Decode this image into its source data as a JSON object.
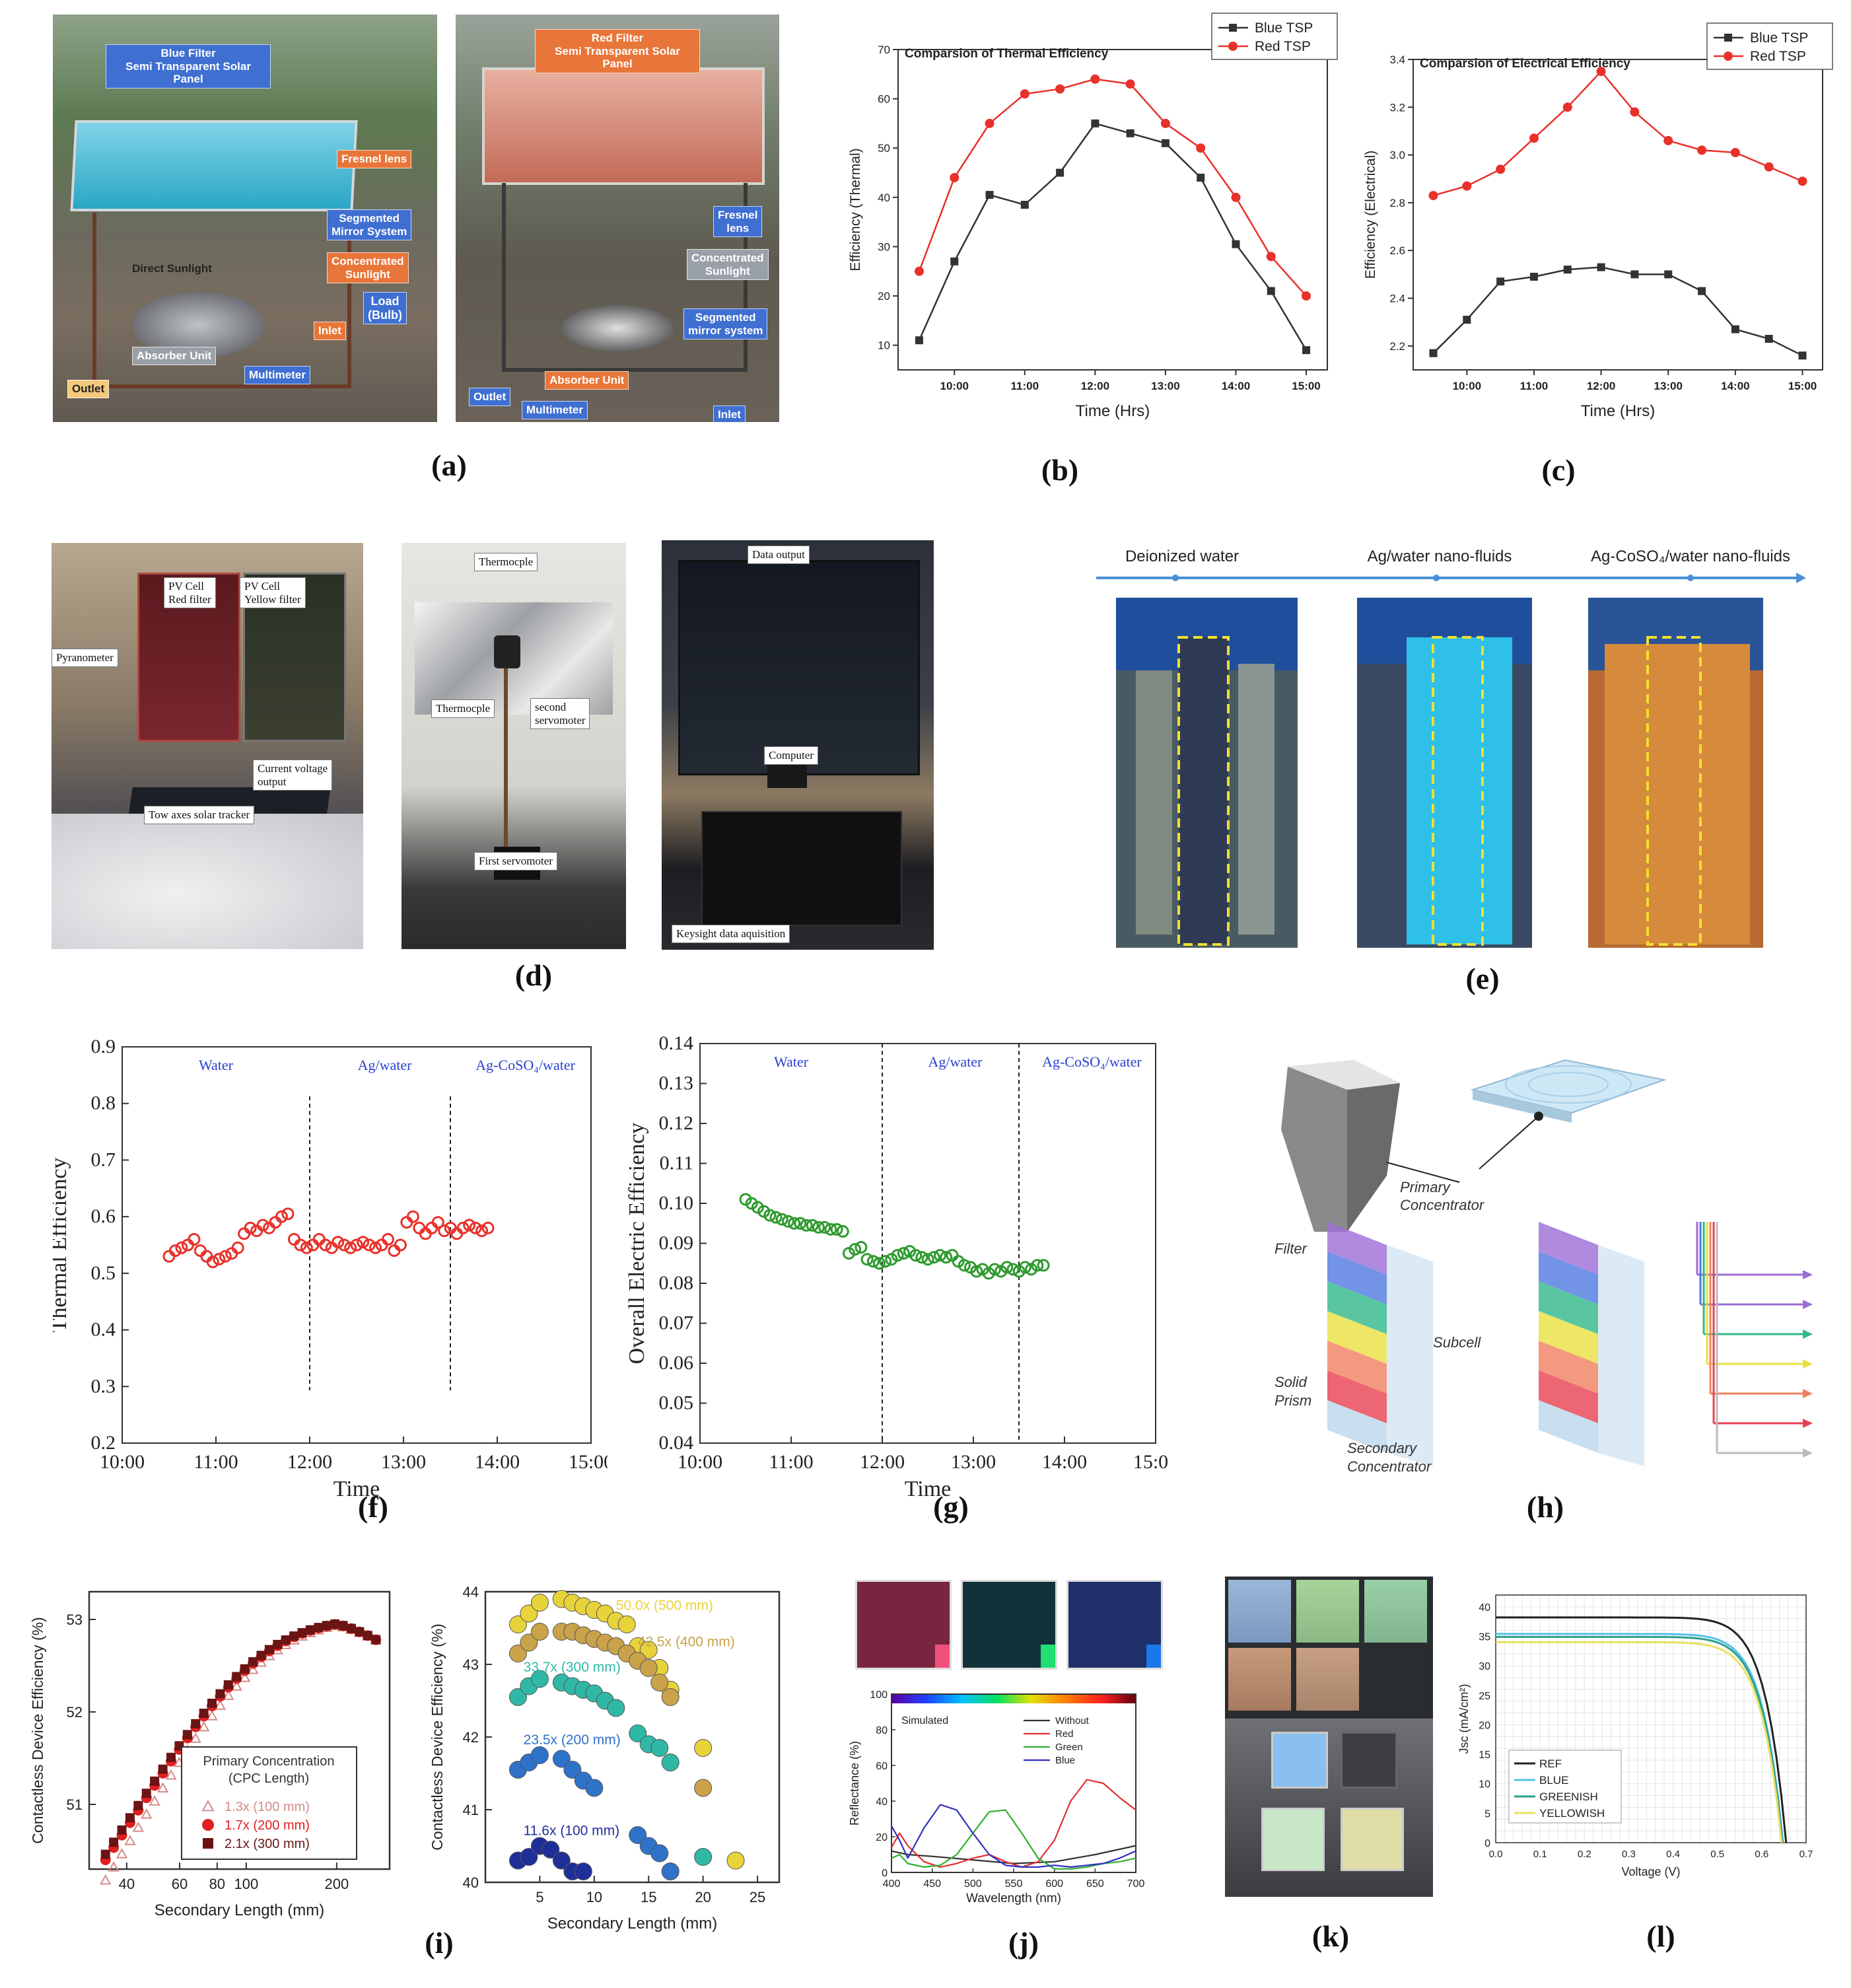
{
  "panel_labels": [
    "(a)",
    "(b)",
    "(c)",
    "(d)",
    "(e)",
    "(f)",
    "(g)",
    "(h)",
    "(i)",
    "(j)",
    "(k)",
    "(l)"
  ],
  "a": {
    "left": {
      "blue_filter": "Blue Filter\nSemi Transparent  Solar Panel",
      "fresnel": "Fresnel lens",
      "segmented": "Segmented\nMirror System",
      "concentrated": "Concentrated\nSunlight",
      "direct": "Direct Sunlight",
      "load": "Load\n(Bulb)",
      "inlet": "Inlet",
      "absorber": "Absorber Unit",
      "multimeter": "Multimeter",
      "outlet": "Outlet"
    },
    "right": {
      "red_filter": "Red Filter\nSemi Transparent Solar Panel",
      "fresnel": "Fresnel\nlens",
      "concentrated": "Concentrated\nSunlight",
      "segmented": "Segmented\nmirror system",
      "absorber": "Absorber Unit",
      "outlet": "Outlet",
      "multimeter": "Multimeter",
      "inlet": "Inlet"
    }
  },
  "d": {
    "pyranometer": "Pyranometer",
    "pv_red": "PV Cell\nRed filter",
    "pv_yellow": "PV Cell\nYellow filter",
    "current_voltage": "Current voltage\noutput",
    "tracker": "Tow axes solar tracker",
    "thermocple_top": "Thermocple",
    "thermocple_mid": "Thermocple",
    "second_servo": "second\nservomoter",
    "first_servo": "First servomoter",
    "data_output": "Data output",
    "computer": "Computer",
    "keysight": "Keysight data aquisition"
  },
  "e": {
    "labels": [
      "Deionized water",
      "Ag/water nano-fluids",
      "Ag-CoSO₄/water nano-fluids"
    ]
  },
  "h": {
    "primary": "Primary\nConcentrator",
    "filter": "Filter",
    "subcell": "Subcell",
    "solid_prism": "Solid\nPrism",
    "secondary": "Secondary\nConcentrator"
  },
  "k": {},
  "chart_data": [
    {
      "id": "b",
      "type": "line",
      "title": "Comparsion of Thermal Efficiency",
      "xlabel": "Time (Hrs)",
      "ylabel": "Efficiency (Thermal)",
      "x": [
        9.5,
        10,
        10.5,
        11,
        11.5,
        12,
        12.5,
        13,
        13.5,
        14,
        14.5,
        15
      ],
      "xticks": [
        "10:00",
        "11:00",
        "12:00",
        "13:00",
        "14:00",
        "15:00"
      ],
      "xtick_values": [
        10,
        11,
        12,
        13,
        14,
        15
      ],
      "xlim": [
        9.2,
        15.3
      ],
      "ylim": [
        5,
        70
      ],
      "yticks": [
        10,
        20,
        30,
        40,
        50,
        60,
        70
      ],
      "series": [
        {
          "name": "Blue TSP",
          "color": "#333333",
          "marker": "square",
          "values": [
            11,
            27,
            40.5,
            38.5,
            45,
            55,
            53,
            51,
            44,
            30.5,
            21,
            9
          ]
        },
        {
          "name": "Red TSP",
          "color": "#e8312a",
          "marker": "circle",
          "values": [
            25,
            44,
            55,
            61,
            62,
            64,
            63,
            55,
            50,
            40,
            28,
            20
          ]
        }
      ],
      "legend": "top-right"
    },
    {
      "id": "c",
      "type": "line",
      "title": "Comparsion of Electrical Efficiency",
      "xlabel": "Time (Hrs)",
      "ylabel": "Efficiency (Electrical)",
      "x": [
        9.5,
        10,
        10.5,
        11,
        11.5,
        12,
        12.5,
        13,
        13.5,
        14,
        14.5,
        15
      ],
      "xticks": [
        "10:00",
        "11:00",
        "12:00",
        "13:00",
        "14:00",
        "15:00"
      ],
      "xtick_values": [
        10,
        11,
        12,
        13,
        14,
        15
      ],
      "xlim": [
        9.2,
        15.3
      ],
      "ylim": [
        2.1,
        3.4
      ],
      "yticks": [
        2.2,
        2.4,
        2.6,
        2.8,
        3.0,
        3.2,
        3.4
      ],
      "ytick_labels": [
        "2.2",
        "2.4",
        "2.6",
        "2.8",
        "3.0",
        "3.2",
        "3.4"
      ],
      "series": [
        {
          "name": "Blue TSP",
          "color": "#333333",
          "marker": "square",
          "values": [
            2.17,
            2.31,
            2.47,
            2.49,
            2.52,
            2.53,
            2.5,
            2.5,
            2.43,
            2.27,
            2.23,
            2.16
          ]
        },
        {
          "name": "Red TSP",
          "color": "#e8312a",
          "marker": "circle",
          "values": [
            2.83,
            2.87,
            2.94,
            3.07,
            3.2,
            3.35,
            3.18,
            3.06,
            3.02,
            3.01,
            2.95,
            2.89
          ]
        }
      ],
      "legend": "top-right"
    },
    {
      "id": "f",
      "type": "scatter",
      "xlabel": "Time",
      "ylabel": "Thermal Efficiency",
      "xlim": [
        10,
        15
      ],
      "ylim": [
        0.2,
        0.9
      ],
      "xticks": [
        "10:00",
        "11:00",
        "12:00",
        "13:00",
        "14:00",
        "15:00"
      ],
      "yticks": [
        "0.2",
        "0.3",
        "0.4",
        "0.5",
        "0.6",
        "0.7",
        "0.8",
        "0.9"
      ],
      "regions": [
        "Water",
        "Ag/water",
        "Ag-CoSO₄/water"
      ],
      "dividers": [
        12,
        13.5
      ],
      "color": "#e8312a",
      "x_start": 10.5,
      "x_step": 0.0667,
      "values": [
        0.53,
        0.54,
        0.545,
        0.55,
        0.56,
        0.54,
        0.53,
        0.52,
        0.525,
        0.53,
        0.535,
        0.545,
        0.57,
        0.58,
        0.575,
        0.585,
        0.58,
        0.59,
        0.6,
        0.605,
        0.56,
        0.55,
        0.545,
        0.55,
        0.56,
        0.55,
        0.545,
        0.555,
        0.55,
        0.545,
        0.55,
        0.555,
        0.55,
        0.545,
        0.55,
        0.56,
        0.54,
        0.55,
        0.59,
        0.6,
        0.58,
        0.57,
        0.58,
        0.59,
        0.575,
        0.58,
        0.57,
        0.58,
        0.585,
        0.58,
        0.575,
        0.58
      ]
    },
    {
      "id": "g",
      "type": "scatter",
      "xlabel": "Time",
      "ylabel": "Overall Electric Efficiency",
      "xlim": [
        10,
        15
      ],
      "ylim": [
        0.04,
        0.14
      ],
      "xticks": [
        "10:00",
        "11:00",
        "12:00",
        "13:00",
        "14:00",
        "15:00"
      ],
      "yticks": [
        "0.04",
        "0.05",
        "0.06",
        "0.07",
        "0.08",
        "0.09",
        "0.10",
        "0.11",
        "0.12",
        "0.13",
        "0.14"
      ],
      "regions": [
        "Water",
        "Ag/water",
        "Ag-CoSO₄/water"
      ],
      "dividers": [
        12,
        13.5
      ],
      "color": "#2e9a2e",
      "x_start": 10.5,
      "x_step": 0.0667,
      "values": [
        0.101,
        0.1,
        0.099,
        0.098,
        0.097,
        0.0965,
        0.096,
        0.0955,
        0.095,
        0.095,
        0.0945,
        0.0945,
        0.094,
        0.094,
        0.0935,
        0.0935,
        0.093,
        0.0875,
        0.0885,
        0.089,
        0.086,
        0.0855,
        0.085,
        0.0855,
        0.086,
        0.087,
        0.0875,
        0.088,
        0.087,
        0.0865,
        0.086,
        0.0865,
        0.087,
        0.0865,
        0.087,
        0.0855,
        0.0845,
        0.084,
        0.083,
        0.0835,
        0.0825,
        0.0835,
        0.083,
        0.084,
        0.0835,
        0.083,
        0.084,
        0.0835,
        0.0845,
        0.0845
      ]
    },
    {
      "id": "i1",
      "type": "scatter",
      "xlabel": "Secondary Length (mm)",
      "ylabel": "Contactless Device Efficiency (%)",
      "xscale": "log",
      "xlim": [
        30,
        300
      ],
      "ylim": [
        50.3,
        53.3
      ],
      "xticks": [
        "40",
        "60",
        "80",
        "100",
        "200"
      ],
      "xtick_values": [
        40,
        60,
        80,
        100,
        200
      ],
      "yticks": [
        "51",
        "52",
        "53"
      ],
      "legend_title": "Primary Concentration\n(CPC Length)",
      "series": [
        {
          "name": "1.3x (100 mm)",
          "marker": "triangle",
          "color": "#d58b8b"
        },
        {
          "name": "1.7x (200 mm)",
          "marker": "circle",
          "color": "#e02020"
        },
        {
          "name": "2.1x (300 mm)",
          "marker": "square",
          "color": "#6b1414"
        }
      ]
    },
    {
      "id": "i2",
      "type": "scatter",
      "xlabel": "Secondary Length (mm)",
      "ylabel": "Contactless Device Efficiency (%)",
      "xlim": [
        0,
        27
      ],
      "ylim": [
        40,
        44
      ],
      "xticks": [
        "5",
        "10",
        "15",
        "20",
        "25"
      ],
      "yticks": [
        "40",
        "41",
        "42",
        "43",
        "44"
      ],
      "series": [
        {
          "name": "50.0x (500 mm)",
          "color": "#e8d33a",
          "points": [
            [
              3,
              43.55
            ],
            [
              4,
              43.7
            ],
            [
              5,
              43.85
            ],
            [
              7,
              43.9
            ],
            [
              8,
              43.85
            ],
            [
              9,
              43.8
            ],
            [
              10,
              43.75
            ],
            [
              11,
              43.7
            ],
            [
              12,
              43.6
            ],
            [
              13,
              43.55
            ],
            [
              14,
              43.25
            ],
            [
              15,
              43.2
            ],
            [
              16,
              42.95
            ],
            [
              17,
              42.65
            ],
            [
              20,
              41.85
            ],
            [
              23,
              40.3
            ]
          ]
        },
        {
          "name": "42.5x (400 mm)",
          "color": "#c9a24a",
          "points": [
            [
              3,
              43.15
            ],
            [
              4,
              43.3
            ],
            [
              5,
              43.45
            ],
            [
              7,
              43.45
            ],
            [
              8,
              43.45
            ],
            [
              9,
              43.4
            ],
            [
              10,
              43.35
            ],
            [
              11,
              43.3
            ],
            [
              12,
              43.25
            ],
            [
              13,
              43.15
            ],
            [
              14,
              43.05
            ],
            [
              15,
              42.95
            ],
            [
              16,
              42.75
            ],
            [
              17,
              42.55
            ],
            [
              20,
              41.3
            ]
          ]
        },
        {
          "name": "33.7x (300 mm)",
          "color": "#2fb8a6",
          "points": [
            [
              3,
              42.55
            ],
            [
              4,
              42.7
            ],
            [
              5,
              42.8
            ],
            [
              7,
              42.75
            ],
            [
              8,
              42.7
            ],
            [
              9,
              42.65
            ],
            [
              10,
              42.6
            ],
            [
              11,
              42.5
            ],
            [
              12,
              42.4
            ],
            [
              14,
              42.05
            ],
            [
              15,
              41.9
            ],
            [
              16,
              41.85
            ],
            [
              17,
              41.65
            ],
            [
              20,
              40.35
            ]
          ]
        },
        {
          "name": "23.5x (200 mm)",
          "color": "#2f72c9",
          "points": [
            [
              3,
              41.55
            ],
            [
              4,
              41.65
            ],
            [
              5,
              41.75
            ],
            [
              7,
              41.7
            ],
            [
              8,
              41.55
            ],
            [
              9,
              41.4
            ],
            [
              10,
              41.3
            ],
            [
              14,
              40.65
            ],
            [
              15,
              40.5
            ],
            [
              16,
              40.4
            ],
            [
              17,
              40.15
            ]
          ]
        },
        {
          "name": "11.6x (100 mm)",
          "color": "#1f2f9a",
          "points": [
            [
              3,
              40.3
            ],
            [
              4,
              40.35
            ],
            [
              5,
              40.5
            ],
            [
              6,
              40.45
            ],
            [
              7,
              40.3
            ],
            [
              8,
              40.15
            ],
            [
              9,
              40.15
            ]
          ]
        }
      ]
    },
    {
      "id": "j",
      "type": "line",
      "xlabel": "Wavelength (nm)",
      "ylabel": "Reflectance (%)",
      "xlim": [
        400,
        700
      ],
      "ylim": [
        0,
        100
      ],
      "xticks": [
        "400",
        "450",
        "500",
        "550",
        "600",
        "650",
        "700"
      ],
      "yticks": [
        "0",
        "20",
        "40",
        "60",
        "80",
        "100"
      ],
      "annotation": "Simulated",
      "series": [
        {
          "name": "Without",
          "color": "#333333",
          "x": [
            400,
            420,
            450,
            500,
            550,
            600,
            650,
            700
          ],
          "values": [
            12,
            10,
            9,
            7,
            5,
            6,
            10,
            15
          ]
        },
        {
          "name": "Red",
          "color": "#e03030",
          "x": [
            400,
            410,
            420,
            440,
            460,
            480,
            500,
            520,
            540,
            560,
            580,
            600,
            620,
            640,
            660,
            680,
            700
          ],
          "values": [
            14,
            22,
            15,
            6,
            3,
            5,
            8,
            10,
            6,
            3,
            6,
            18,
            40,
            52,
            50,
            42,
            35
          ]
        },
        {
          "name": "Green",
          "color": "#30b030",
          "x": [
            400,
            410,
            420,
            440,
            460,
            480,
            500,
            520,
            540,
            560,
            580,
            600,
            620,
            640,
            660,
            680,
            700
          ],
          "values": [
            8,
            10,
            5,
            3,
            4,
            10,
            22,
            34,
            35,
            22,
            8,
            2,
            2,
            3,
            5,
            6,
            8
          ]
        },
        {
          "name": "Blue",
          "color": "#3030c0",
          "x": [
            400,
            410,
            420,
            440,
            460,
            480,
            500,
            520,
            540,
            560,
            580,
            600,
            620,
            640,
            660,
            680,
            700
          ],
          "values": [
            26,
            18,
            8,
            25,
            38,
            35,
            22,
            10,
            4,
            3,
            3,
            4,
            3,
            4,
            5,
            8,
            12
          ]
        }
      ],
      "legend": "top-right"
    },
    {
      "id": "l",
      "type": "line",
      "xlabel": "Voltage (V)",
      "ylabel": "Jsc (mA/cm²)",
      "xlim": [
        0,
        0.7
      ],
      "ylim": [
        0,
        42
      ],
      "xticks": [
        "0.0",
        "0.1",
        "0.2",
        "0.3",
        "0.4",
        "0.5",
        "0.6",
        "0.7"
      ],
      "yticks": [
        "0",
        "5",
        "10",
        "15",
        "20",
        "25",
        "30",
        "35",
        "40"
      ],
      "series": [
        {
          "name": "REF",
          "color": "#222222",
          "jsc": 38.2,
          "voc": 0.655
        },
        {
          "name": "BLUE",
          "color": "#55c0e8",
          "jsc": 35.4,
          "voc": 0.648
        },
        {
          "name": "GREENISH",
          "color": "#2aa08a",
          "jsc": 34.9,
          "voc": 0.647
        },
        {
          "name": "YELLOWISH",
          "color": "#e8e060",
          "jsc": 34.0,
          "voc": 0.645
        }
      ],
      "legend": "bottom-left"
    }
  ]
}
